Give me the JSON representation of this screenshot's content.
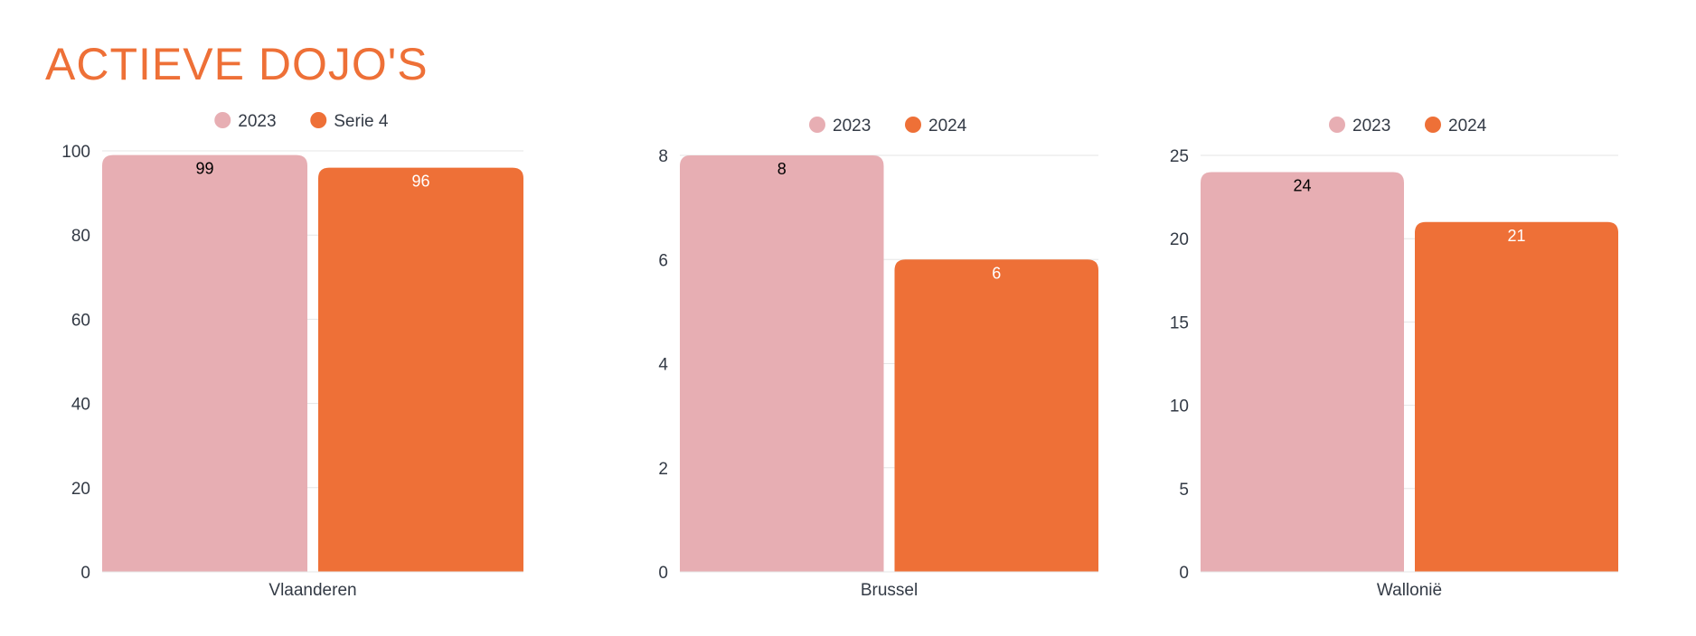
{
  "page_title": "ACTIEVE DOJO'S",
  "colors": {
    "pink": "#e7aeb3",
    "orange": "#ee7037",
    "grid": "#e6e6e6",
    "text": "#333a45"
  },
  "chart_data": [
    {
      "type": "bar",
      "categories": [
        "Vlaanderen"
      ],
      "series": [
        {
          "name": "2023",
          "values": [
            99
          ],
          "color": "#e7aeb3",
          "label_color": "#000000"
        },
        {
          "name": "Serie 4",
          "values": [
            96
          ],
          "color": "#ee7037",
          "label_color": "#ffffff"
        }
      ],
      "ylim": [
        0,
        100
      ],
      "yticks": [
        0,
        20,
        40,
        60,
        80,
        100
      ],
      "grid": true,
      "legend": "top-center"
    },
    {
      "type": "bar",
      "categories": [
        "Brussel"
      ],
      "series": [
        {
          "name": "2023",
          "values": [
            8
          ],
          "color": "#e7aeb3",
          "label_color": "#000000"
        },
        {
          "name": "2024",
          "values": [
            6
          ],
          "color": "#ee7037",
          "label_color": "#ffffff"
        }
      ],
      "ylim": [
        0,
        8
      ],
      "yticks": [
        0,
        2,
        4,
        6,
        8
      ],
      "grid": true,
      "legend": "top-center"
    },
    {
      "type": "bar",
      "categories": [
        "Wallonië"
      ],
      "series": [
        {
          "name": "2023",
          "values": [
            24
          ],
          "color": "#e7aeb3",
          "label_color": "#000000"
        },
        {
          "name": "2024",
          "values": [
            21
          ],
          "color": "#ee7037",
          "label_color": "#ffffff"
        }
      ],
      "ylim": [
        0,
        25
      ],
      "yticks": [
        0,
        5,
        10,
        15,
        20,
        25
      ],
      "grid": true,
      "legend": "top-center"
    }
  ]
}
